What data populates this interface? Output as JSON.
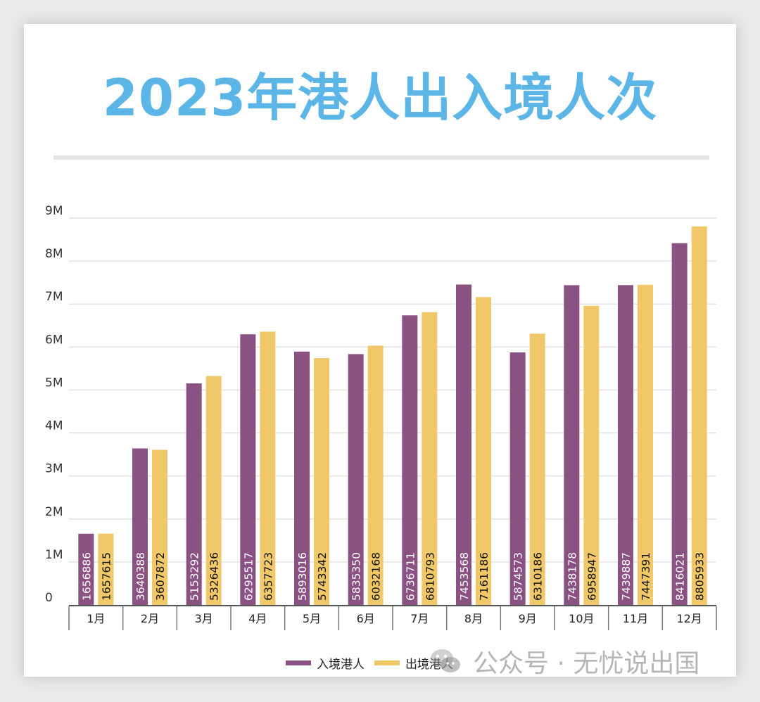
{
  "chart_data": {
    "type": "bar",
    "title": "2023年港人出入境人次",
    "categories": [
      "1月",
      "2月",
      "3月",
      "4月",
      "5月",
      "6月",
      "7月",
      "8月",
      "9月",
      "10月",
      "11月",
      "12月"
    ],
    "series": [
      {
        "name": "入境港人",
        "color": "#8a5183",
        "values": [
          1656886,
          3640388,
          5153292,
          6295517,
          5893016,
          5835350,
          6736711,
          7453568,
          5874573,
          7438178,
          7439887,
          8416021
        ]
      },
      {
        "name": "出境港人",
        "color": "#f0c869",
        "values": [
          1657615,
          3607872,
          5326436,
          6357723,
          5743342,
          6032168,
          6810793,
          7161186,
          6310186,
          6958947,
          7447391,
          8805933
        ]
      }
    ],
    "ylim": [
      0,
      9000000
    ],
    "yticks": [
      "0",
      "1M",
      "2M",
      "3M",
      "4M",
      "5M",
      "6M",
      "7M",
      "8M",
      "9M"
    ],
    "grid": true,
    "legend_position": "bottom"
  },
  "watermark": {
    "text": "公众号 · 无忧说出国",
    "icon": "wechat-icon"
  }
}
